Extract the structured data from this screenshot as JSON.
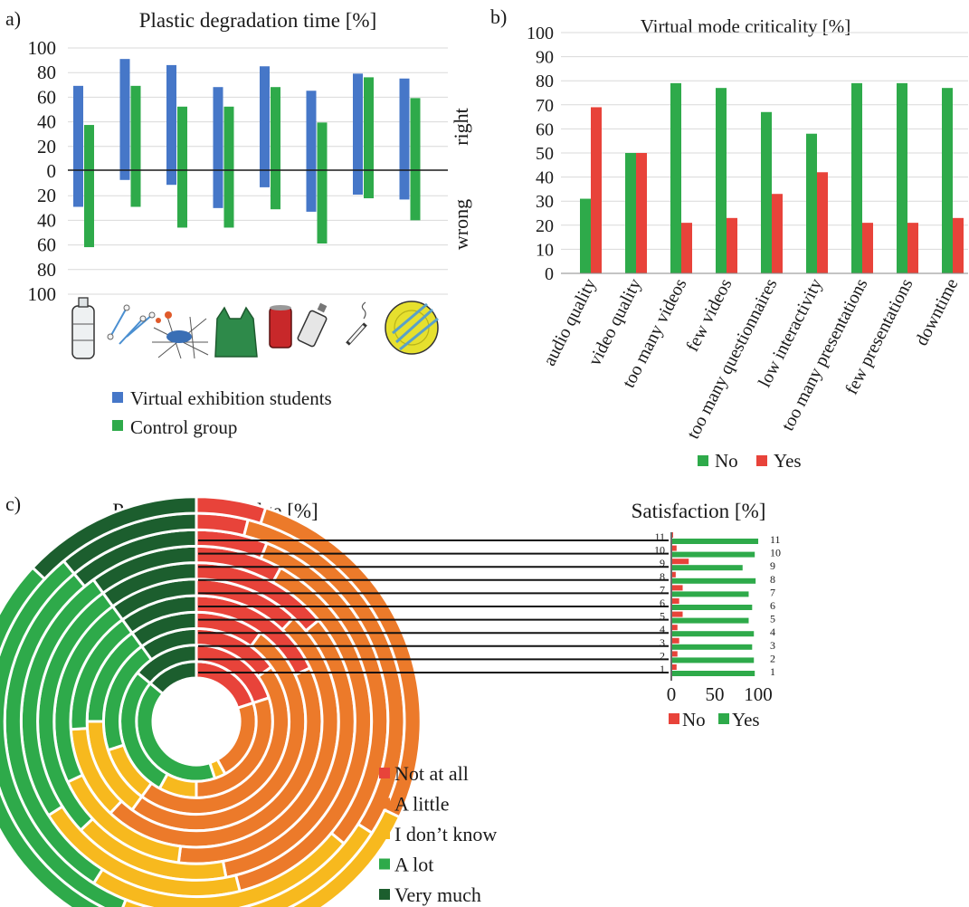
{
  "colors": {
    "blue": "#4677c8",
    "green": "#2eaa4a",
    "red": "#e8433a",
    "orange": "#ec7a2a",
    "yellow": "#f7b91e",
    "dark_green": "#1c5e2e"
  },
  "chart_data": [
    {
      "panel": "a)",
      "type": "bar",
      "title": "Plastic degradation time [%]",
      "categories": [
        "",
        "",
        "",
        "",
        "",
        "",
        "",
        ""
      ],
      "category_icons": [
        "plastic-bottle-icon",
        "cotton-swabs-icon",
        "fishing-net-icon",
        "plastic-bag-icon",
        "soda-can-icon",
        "spray-can-icon",
        "cigarette-icon",
        "plastic-cutlery-plate-icon"
      ],
      "series": [
        {
          "name": "Virtual exhibition students",
          "right": [
            69,
            91,
            86,
            68,
            85,
            65,
            79,
            75
          ],
          "wrong": [
            30,
            8,
            12,
            31,
            14,
            34,
            20,
            24
          ]
        },
        {
          "name": "Control group",
          "right": [
            37,
            69,
            52,
            52,
            68,
            39,
            76,
            59
          ],
          "wrong": [
            63,
            30,
            47,
            47,
            32,
            60,
            23,
            41
          ]
        }
      ],
      "y_tick_labels": [
        "100",
        "80",
        "60",
        "40",
        "20",
        "0",
        "20",
        "40",
        "60",
        "80",
        "100"
      ],
      "ylim": [
        -100,
        100
      ],
      "side_labels": {
        "upper": "right",
        "lower": "wrong"
      },
      "grid": true
    },
    {
      "panel": "b)",
      "type": "bar",
      "title": "Virtual mode criticality [%]",
      "categories": [
        "audio quality",
        "video quality",
        "too many videos",
        "few videos",
        "too many questionnaires",
        "low interactivity",
        "too many presentations",
        "few presentations",
        "downtime"
      ],
      "series": [
        {
          "name": "No",
          "values": [
            31,
            50,
            79,
            77,
            67,
            58,
            79,
            79,
            77
          ]
        },
        {
          "name": "Yes",
          "values": [
            69,
            50,
            21,
            23,
            33,
            42,
            21,
            21,
            23
          ]
        }
      ],
      "y_ticks": [
        0,
        10,
        20,
        30,
        40,
        50,
        60,
        70,
        80,
        90,
        100
      ],
      "ylim": [
        0,
        100
      ],
      "grid": true
    },
    {
      "panel": "c)",
      "type": "pie",
      "title": "Previous knowledge [%]",
      "rings": [
        "1",
        "2",
        "3",
        "4",
        "5",
        "6",
        "7",
        "8",
        "9",
        "10",
        "11"
      ],
      "categories": [
        "Not at all",
        "A little",
        "I don't know",
        "A lot",
        "Very much"
      ],
      "ring_values": [
        [
          20,
          22,
          3,
          41,
          14
        ],
        [
          20,
          30,
          8,
          28,
          14
        ],
        [
          15,
          45,
          10,
          20,
          10
        ],
        [
          10,
          50,
          15,
          15,
          10
        ],
        [
          18,
          44,
          12,
          16,
          10
        ],
        [
          12,
          40,
          16,
          22,
          10
        ],
        [
          14,
          33,
          16,
          27,
          10
        ],
        [
          8,
          38,
          20,
          24,
          10
        ],
        [
          6,
          30,
          23,
          30,
          11
        ],
        [
          4,
          30,
          22,
          33,
          11
        ],
        [
          5,
          27,
          13,
          42,
          13
        ]
      ]
    },
    {
      "panel": "c)",
      "type": "bar",
      "orientation": "horizontal",
      "title": "Satisfaction [%]",
      "categories": [
        "1",
        "2",
        "3",
        "4",
        "5",
        "6",
        "7",
        "8",
        "9",
        "10",
        "11"
      ],
      "series": [
        {
          "name": "No",
          "values": [
            5,
            6,
            8,
            6,
            12,
            8,
            12,
            4,
            19,
            5,
            1
          ]
        },
        {
          "name": "Yes",
          "values": [
            95,
            94,
            92,
            94,
            88,
            92,
            88,
            96,
            81,
            95,
            99
          ]
        }
      ],
      "x_ticks": [
        0,
        50,
        100
      ],
      "xlim": [
        0,
        100
      ]
    }
  ],
  "labels": {
    "panel_a": "a)",
    "panel_b": "b)",
    "panel_c": "c)",
    "right": "right",
    "wrong": "wrong",
    "legend_a": [
      "Virtual exhibition students",
      "Control group"
    ],
    "legend_b": [
      "No",
      "Yes"
    ],
    "legend_sat": [
      "No",
      "Yes"
    ],
    "legend_pie": [
      "Not at all",
      "A little",
      "I don’t know",
      "A lot",
      "Very much"
    ]
  }
}
